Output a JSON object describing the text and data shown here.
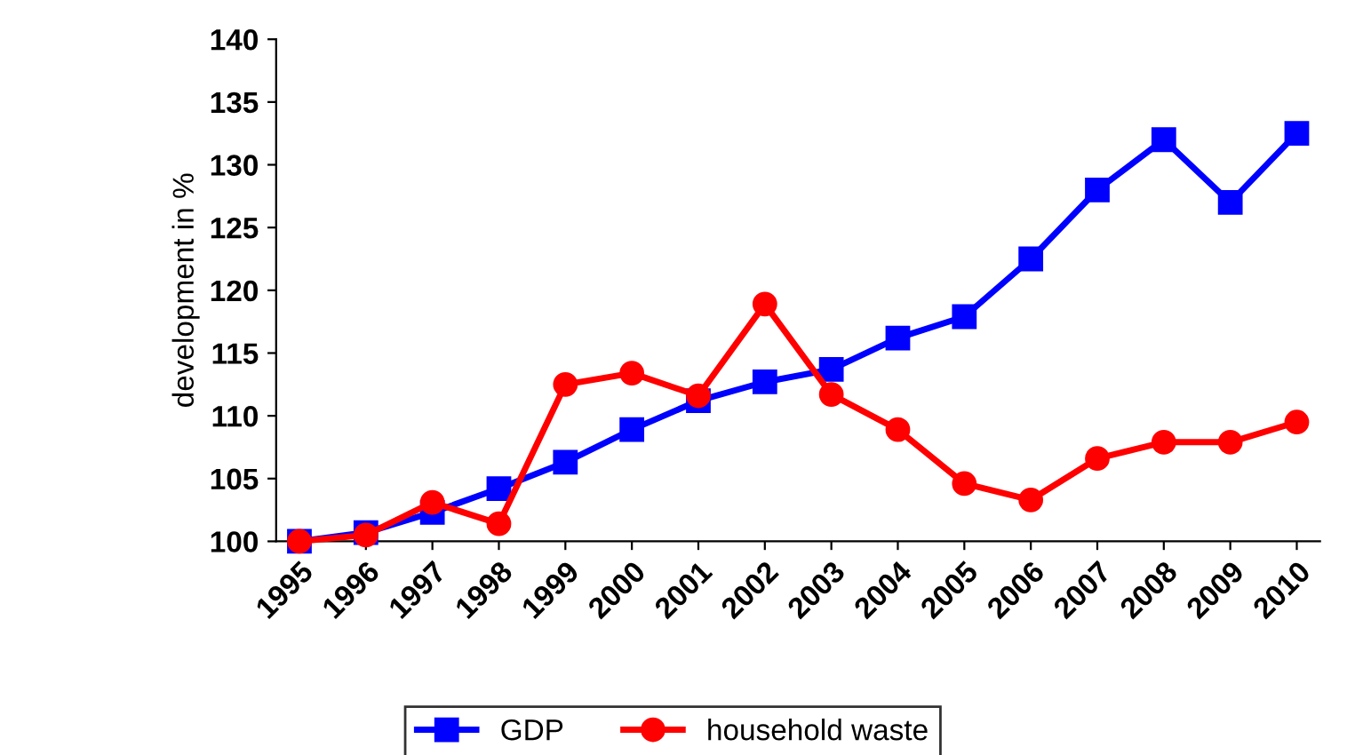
{
  "chart_data": {
    "type": "line",
    "ylabel": "development in %",
    "categories": [
      "1995",
      "1996",
      "1997",
      "1998",
      "1999",
      "2000",
      "2001",
      "2002",
      "2003",
      "2004",
      "2005",
      "2006",
      "2007",
      "2008",
      "2009",
      "2010"
    ],
    "series": [
      {
        "name": "GDP",
        "color": "#0000ff",
        "marker": "square",
        "values": [
          100,
          100.7,
          102.3,
          104.2,
          106.3,
          108.9,
          111.2,
          112.7,
          113.7,
          116.2,
          117.9,
          122.5,
          128,
          132,
          127,
          132.5
        ]
      },
      {
        "name": "household waste",
        "color": "#ff0000",
        "marker": "circle",
        "values": [
          100,
          100.5,
          103.1,
          101.4,
          112.5,
          113.4,
          111.6,
          118.9,
          111.7,
          108.9,
          104.6,
          103.3,
          106.6,
          107.9,
          107.9,
          109.5
        ]
      }
    ],
    "ylim": [
      100,
      140
    ],
    "yticks": [
      100,
      105,
      110,
      115,
      120,
      125,
      130,
      135,
      140
    ],
    "grid": false,
    "legend": "bottom",
    "line_style": "solid"
  }
}
